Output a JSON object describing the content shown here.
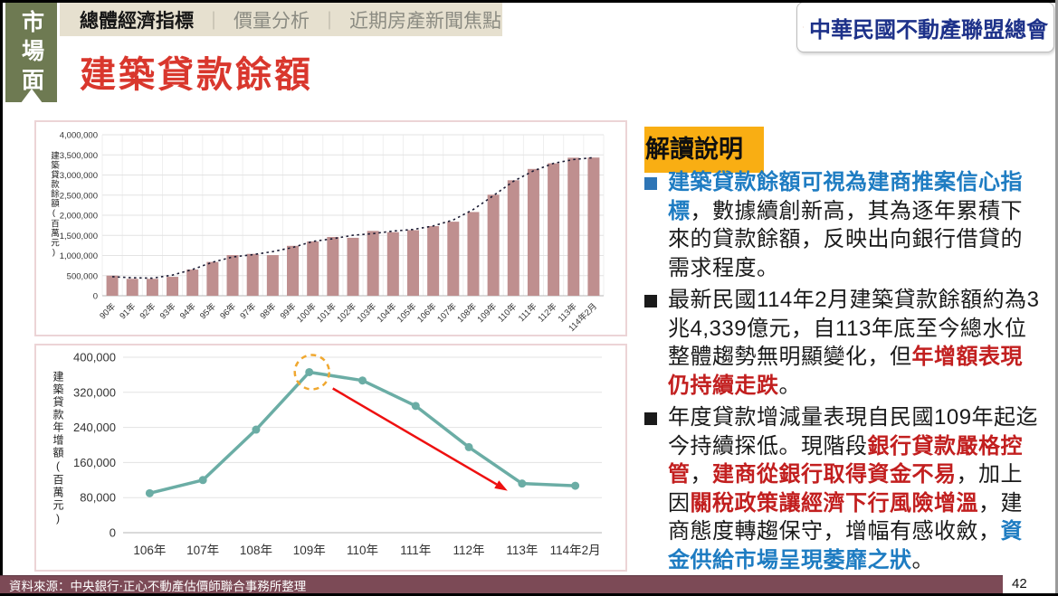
{
  "slide": {
    "sidebar_tab": "市場面",
    "tab_separator": "｜",
    "header_tabs": [
      {
        "label": "總體經濟指標",
        "active": true
      },
      {
        "label": "價量分析",
        "active": false
      },
      {
        "label": "近期房產新聞焦點",
        "active": false
      }
    ],
    "logo_text": "中華民國不動產聯盟總會",
    "title": "建築貸款餘額",
    "source": "資料來源：中央銀行‧正心不動產估價師聯合事務所整理",
    "page_number": "42"
  },
  "interpretation": {
    "heading": "解讀說明",
    "bullets": [
      {
        "marker_color": "#2E75B6",
        "segments": [
          {
            "t": "建築貸款餘額可視為建商推案信心指標",
            "s": "blue"
          },
          {
            "t": "，數據續創新高，其為逐年累積下來的貸款餘額，反映出向銀行借貸的需求程度。",
            "s": "normal"
          }
        ]
      },
      {
        "marker_color": "#1a1a1a",
        "segments": [
          {
            "t": "最新民國114年2月建築貸款餘額約為3兆4,339億元，自113年底至今總水位整體趨勢無明顯變化，但",
            "s": "normal"
          },
          {
            "t": "年增額表現仍持續走跌",
            "s": "red"
          },
          {
            "t": "。",
            "s": "normal"
          }
        ]
      },
      {
        "marker_color": "#1a1a1a",
        "segments": [
          {
            "t": "年度貸款增減量表現自民國109年起迄今持續探低。現階段",
            "s": "normal"
          },
          {
            "t": "銀行貸款嚴格控管",
            "s": "red"
          },
          {
            "t": "，",
            "s": "normal"
          },
          {
            "t": "建商從銀行取得資金不易",
            "s": "red"
          },
          {
            "t": "，加上因",
            "s": "normal"
          },
          {
            "t": "關稅政策讓經濟下行風險增溫",
            "s": "red"
          },
          {
            "t": "，建商態度轉趨保守，增幅有感收斂，",
            "s": "normal"
          },
          {
            "t": "資金供給市場呈現萎靡之狀",
            "s": "blue"
          },
          {
            "t": "。",
            "s": "normal"
          }
        ]
      }
    ]
  },
  "colors": {
    "bar": "#BF8F8F",
    "trend_line": "#1B1B33",
    "teal_line": "#6BADA5",
    "grid": "#E3E3E3",
    "vgrid": "#EFEFEF",
    "axis": "#B5B5B5",
    "tick_text": "#333333",
    "highlight_circle": "#F0A830",
    "arrow": "#EE1010",
    "accent_red": "#D9372D",
    "badge_yellow": "#F9AE13",
    "footer_maroon": "#7C4A56",
    "sidebar_olive": "#6E7A52",
    "tabbar_beige": "#E6E0CF"
  },
  "chart_data": [
    {
      "type": "bar",
      "title": "建築貸款餘額(歷年)",
      "ylabel": "建築貸款餘額(百萬元)",
      "xlabel": "",
      "categories": [
        "90年",
        "91年",
        "92年",
        "93年",
        "94年",
        "95年",
        "96年",
        "97年",
        "98年",
        "99年",
        "100年",
        "101年",
        "102年",
        "103年",
        "104年",
        "105年",
        "106年",
        "107年",
        "108年",
        "109年",
        "110年",
        "111年",
        "112年",
        "113年",
        "114年2月"
      ],
      "values": [
        500000,
        420000,
        420000,
        470000,
        650000,
        840000,
        1010000,
        1040000,
        1010000,
        1240000,
        1350000,
        1460000,
        1440000,
        1610000,
        1580000,
        1630000,
        1730000,
        1840000,
        2080000,
        2510000,
        2870000,
        3150000,
        3290000,
        3430000,
        3434000
      ],
      "ylim": [
        0,
        4000000
      ],
      "ytick_step": 500000,
      "grid": true,
      "trendline": {
        "style": "dotted"
      },
      "legend": "none"
    },
    {
      "type": "line",
      "title": "建築貸款年增額",
      "ylabel": "建築貸款年增額(百萬元)",
      "xlabel": "",
      "categories": [
        "106年",
        "107年",
        "108年",
        "109年",
        "110年",
        "111年",
        "112年",
        "113年",
        "114年2月"
      ],
      "values": [
        90000,
        120000,
        235000,
        366000,
        347000,
        289000,
        195000,
        112000,
        107000
      ],
      "ylim": [
        0,
        400000
      ],
      "ytick_step": 80000,
      "grid": true,
      "legend": "none",
      "annotations": {
        "highlight_circle_index": 3,
        "arrow": {
          "from_index": 3,
          "to_index": 7
        }
      }
    }
  ]
}
